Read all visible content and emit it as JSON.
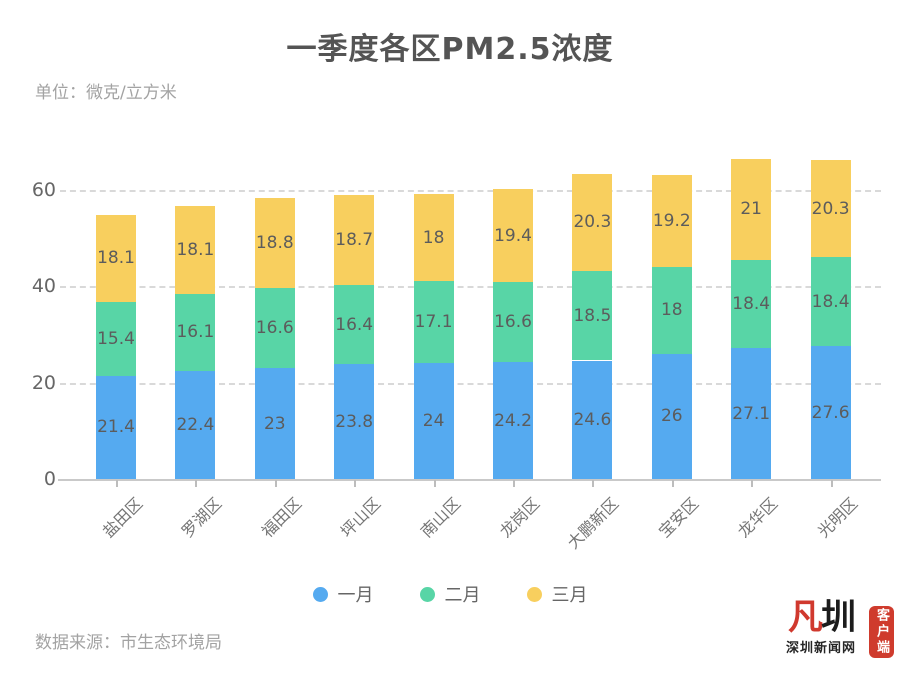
{
  "title": "一季度各区PM2.5浓度",
  "unit_label": "单位：微克/立方米",
  "footer": {
    "source": "数据来源：市生态环境局"
  },
  "logo": {
    "mark_left": "凡",
    "mark_right": "圳",
    "site_name": "深圳新闻网",
    "badge": "客户端",
    "red": "#d0392e"
  },
  "colors": {
    "january_blue": "#55aaf0",
    "february_green": "#58d5a6",
    "march_yellow": "#f8cf5e"
  },
  "chart_data": {
    "type": "bar",
    "stacked": true,
    "title": "一季度各区PM2.5浓度",
    "unit": "微克/立方米",
    "categories": [
      "盐田区",
      "罗湖区",
      "福田区",
      "坪山区",
      "南山区",
      "龙岗区",
      "大鹏新区",
      "宝安区",
      "龙华区",
      "光明区"
    ],
    "series": [
      {
        "name": "一月",
        "color": "#55aaf0",
        "values": [
          21.4,
          22.4,
          23,
          23.8,
          24,
          24.2,
          24.6,
          26,
          27.1,
          27.6
        ]
      },
      {
        "name": "二月",
        "color": "#58d5a6",
        "values": [
          15.4,
          16.1,
          16.6,
          16.4,
          17.1,
          16.6,
          18.5,
          18,
          18.4,
          18.4
        ]
      },
      {
        "name": "三月",
        "color": "#f8cf5e",
        "values": [
          18.1,
          18.1,
          18.8,
          18.7,
          18,
          19.4,
          20.3,
          19.2,
          21,
          20.3
        ]
      }
    ],
    "yticks": [
      0,
      20,
      40,
      60
    ],
    "ylim": [
      0,
      70
    ],
    "grid": "horizontal-dashed",
    "legend_position": "bottom",
    "value_labels": "inside-center"
  }
}
